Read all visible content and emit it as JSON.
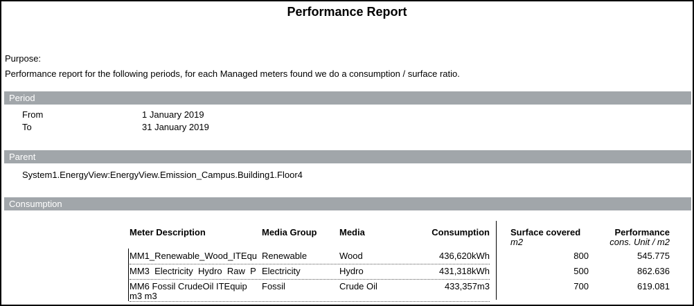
{
  "title": "Performance Report",
  "purpose": {
    "label": "Purpose:",
    "description": "Performance report for the following periods, for each Managed meters found we do a consumption / surface ratio."
  },
  "colors": {
    "section_bar_background": "#a1a6aa",
    "section_bar_text": "#ffffff"
  },
  "sections": {
    "period": {
      "header": "Period",
      "from_label": "From",
      "from_value": "1 January 2019",
      "to_label": "To",
      "to_value": "31 January 2019"
    },
    "parent": {
      "header": "Parent",
      "path": "System1.EnergyView:EnergyView.Emission_Campus.Building1.Floor4"
    },
    "consumption": {
      "header": "Consumption",
      "table": {
        "columns": [
          "Meter Description",
          "Media Group",
          "Media",
          "Consumption",
          "Surface covered",
          "Performance"
        ],
        "sub_headers": {
          "surface_unit": "m2",
          "performance_unit": "cons. Unit / m2"
        },
        "rows": [
          {
            "meter_description": "MM1_Renewable_Wood_ITEqu",
            "media_group": "Renewable",
            "media": "Wood",
            "consumption": "436,620kWh",
            "surface_covered": "800",
            "performance": "545.775"
          },
          {
            "meter_description": "MM3  Electricity  Hydro  Raw  P",
            "media_group": "Electricity",
            "media": "Hydro",
            "consumption": "431,318kWh",
            "surface_covered": "500",
            "performance": "862.636"
          },
          {
            "meter_description": "MM6 Fossil CrudeOil ITEquip m3 m3",
            "media_group": "Fossil",
            "media": "Crude Oil",
            "consumption": "433,357m3",
            "surface_covered": "700",
            "performance": "619.081"
          }
        ]
      }
    }
  }
}
